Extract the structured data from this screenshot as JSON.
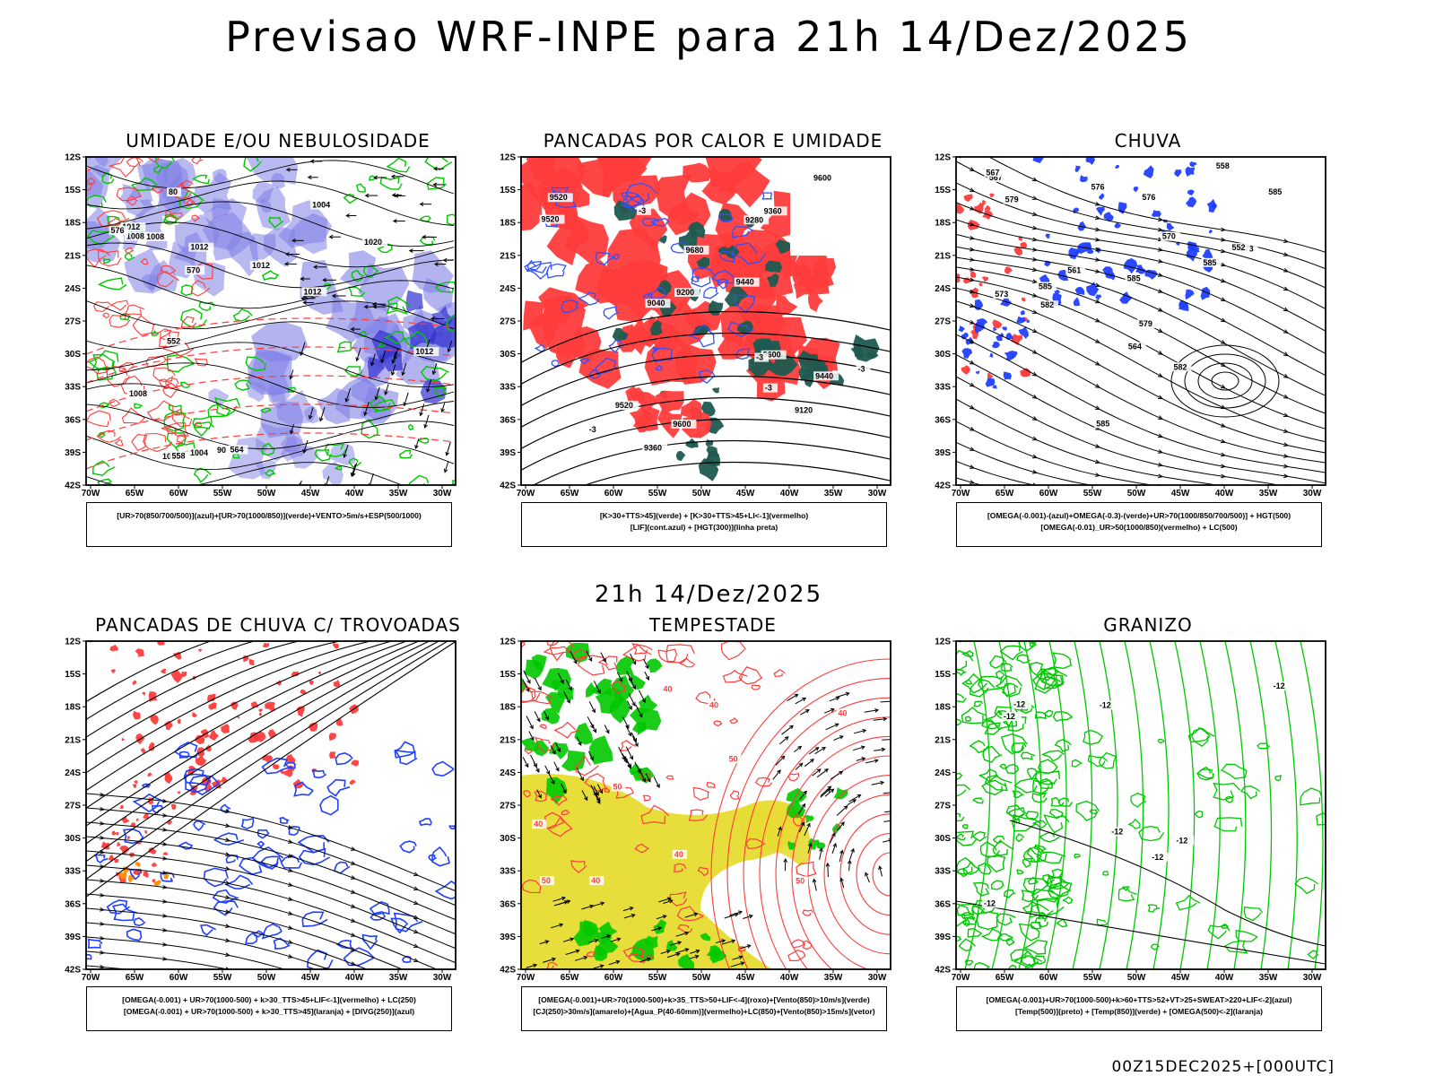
{
  "title": "Previsao WRF-INPE  para 21h 14/Dez/2025",
  "mid_title": "21h 14/Dez/2025",
  "footer": "00Z15DEC2025+[000UTC]",
  "lat_ticks": [
    "12S",
    "15S",
    "18S",
    "21S",
    "24S",
    "27S",
    "30S",
    "33S",
    "36S",
    "39S",
    "42S"
  ],
  "lon_ticks": [
    "70W",
    "65W",
    "60W",
    "55W",
    "50W",
    "45W",
    "40W",
    "35W",
    "30W"
  ],
  "colors": {
    "blue_fill": "#8080e6",
    "red": "#ff3c3c",
    "green": "#00c800",
    "dark_teal": "#1e5a50",
    "yellow": "#e6dc32",
    "orange": "#ff8c00",
    "black": "#000000"
  },
  "panels": [
    {
      "id": "umidade",
      "title": "UMIDADE E/OU NEBULOSIDADE",
      "legend": [
        "[UR>70(850/700/500)](azul)+[UR>70(1000/850)](verde)+VENTO>5m/s+ESP(500/1000)"
      ],
      "labels": [
        "1008",
        "1012",
        "1012",
        "1012",
        "1004",
        "1008",
        "1004",
        "1008",
        "1012",
        "1020",
        "1012",
        "1012",
        "80",
        "90",
        "576",
        "570",
        "564",
        "558",
        "552"
      ]
    },
    {
      "id": "pancadas-calor",
      "title": "PANCADAS POR CALOR E UMIDADE",
      "legend": [
        "[K>30+TTS>45](verde) + [K>30+TTS>45+LI<-1](vermelho)",
        "[LIF](cont.azul) + [HGT(300)](linha preta)"
      ],
      "labels": [
        "9680",
        "9600",
        "9520",
        "9600",
        "9520",
        "9600",
        "9440",
        "9360",
        "9520",
        "9280",
        "9200",
        "9120",
        "9040",
        "9360",
        "9440",
        "-3",
        "-3",
        "-3",
        "-3",
        "-3"
      ]
    },
    {
      "id": "chuva",
      "title": "CHUVA",
      "legend": [
        "[OMEGA(-0.001)-(azul)+OMEGA(-0.3)-(verde)+UR>70(1000/850/700/500)] + HGT(500)",
        "[OMEGA(-0.01)_UR>50(1000/850)(vermelho) + LC(500)"
      ],
      "labels": [
        "585",
        "585",
        "585",
        "585",
        "582",
        "582",
        "579",
        "579",
        "576",
        "576",
        "573",
        "573",
        "570",
        "567",
        "567",
        "564",
        "561",
        "558",
        "552",
        "585"
      ]
    },
    {
      "id": "pancadas-trovoadas",
      "title": "PANCADAS DE CHUVA C/ TROVOADAS",
      "legend": [
        "[OMEGA(-0.001) + UR>70(1000-500) + k>30_TTS>45+LIF<-1](vermelho) + LC(250)",
        "[OMEGA(-0.001) + UR>70(1000-500) + k>30_TTS>45](laranja) + [DIVG(250)](azul)"
      ],
      "labels": []
    },
    {
      "id": "tempestade",
      "title": "TEMPESTADE",
      "legend": [
        "[OMEGA(-0.001)+UR>70(1000-500)+k>35_TTS>50+LIF<-4](roxo)+[Vento(850)>10m/s](verde)",
        "[CJ(250)>30m/s](amarelo)+[Agua_P(40-60mm)](vermelho)+LC(850)+[Vento(850)>15m/s](vetor)"
      ],
      "labels": [
        "40",
        "40",
        "50",
        "40",
        "50",
        "40",
        "50",
        "40",
        "40",
        "50"
      ]
    },
    {
      "id": "granizo",
      "title": "GRANIZO",
      "legend": [
        "[OMEGA(-0.001)+UR>70(1000-500)+k>60+TTS>52+VT>25+SWEAT>220+LIF<-2](azul)",
        "[Temp(500)](preto) + [Temp(850)](verde) + [OMEGA(500)<-2](laranja)"
      ],
      "labels": [
        "-12",
        "-12",
        "-12",
        "-12",
        "-12",
        "-12",
        "-12",
        "-12"
      ]
    }
  ]
}
